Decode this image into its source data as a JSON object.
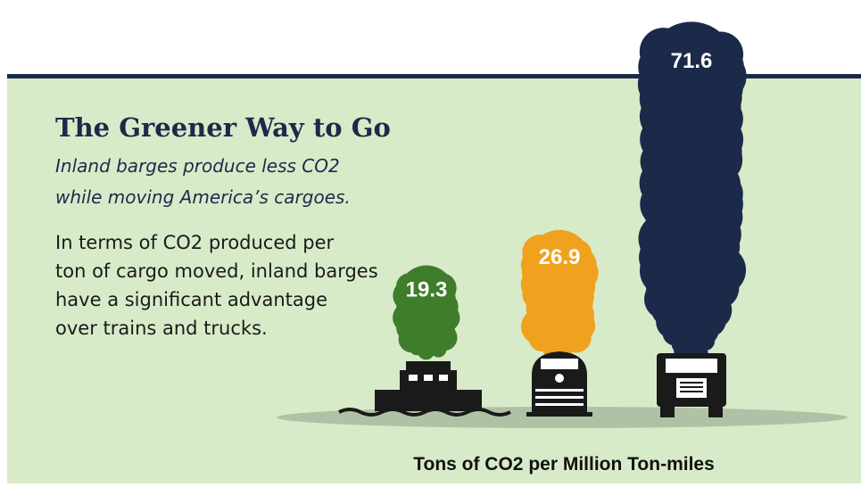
{
  "chart_data": {
    "type": "smoke-plume",
    "title": "The Greener Way to Go",
    "subtitle": [
      "Inland barges produce less CO2",
      "while moving America’s cargoes."
    ],
    "description": [
      "In terms of CO2 produced per",
      "ton of cargo moved, inland barges",
      "have a significant advantage",
      "over trains and trucks."
    ],
    "y_label": "Tons of CO2 per Million Ton-miles",
    "values": [
      19.3,
      26.9,
      71.6
    ],
    "colors": [
      "#3f7d2c",
      "#f0a21e",
      "#1c2a4a"
    ]
  }
}
